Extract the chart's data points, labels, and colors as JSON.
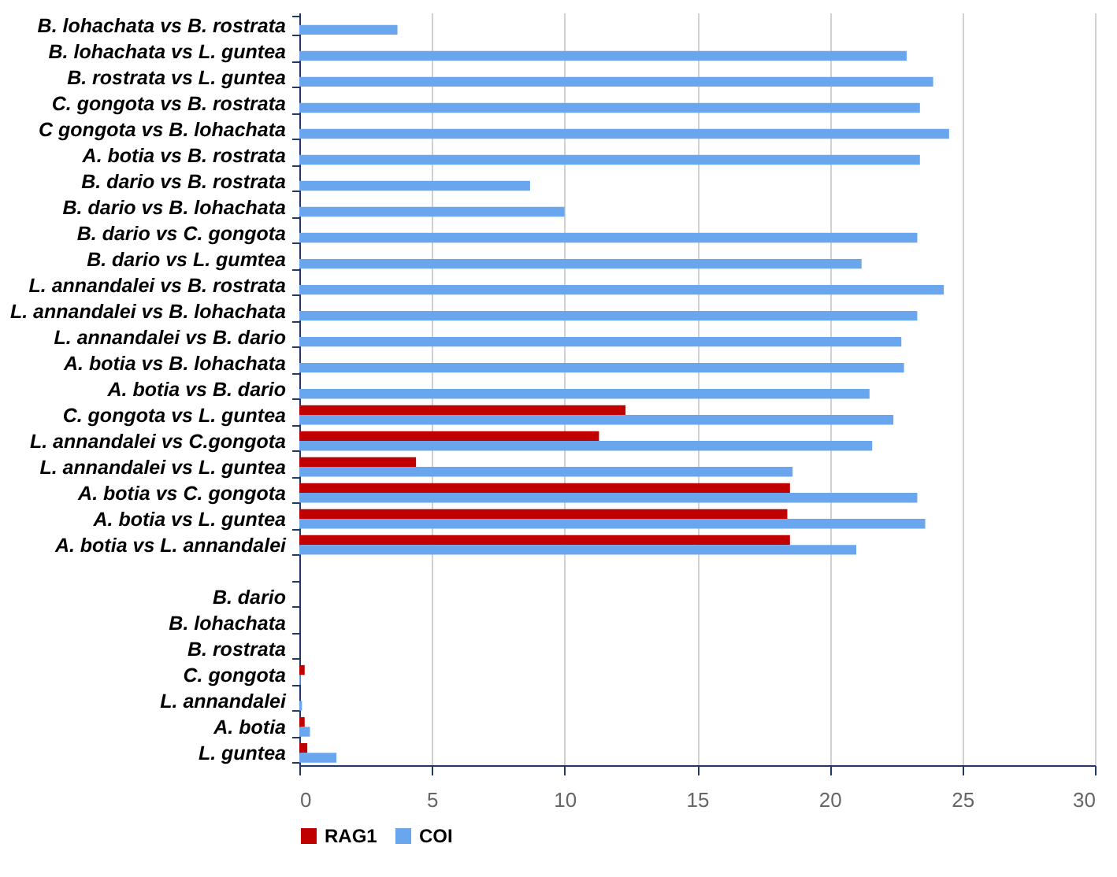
{
  "chart_data": {
    "type": "bar",
    "orientation": "horizontal",
    "categories": [
      "B. lohachata vs B. rostrata",
      "B. lohachata vs L. guntea",
      "B. rostrata vs L. guntea",
      "C. gongota vs B. rostrata",
      "C gongota vs B. lohachata",
      "A. botia vs B. rostrata",
      "B. dario vs B. rostrata",
      "B. dario vs B. lohachata",
      "B. dario vs C. gongota",
      "B. dario vs L. gumtea",
      "L. annandalei vs B. rostrata",
      "L. annandalei vs B. lohachata",
      "L. annandalei vs B. dario",
      "A. botia vs B. lohachata",
      "A. botia vs B. dario",
      "C. gongota vs L. guntea",
      "L. annandalei vs C.gongota",
      "L. annandalei vs L. guntea",
      "A. botia vs C. gongota",
      "A. botia vs L. guntea",
      "A. botia vs L. annandalei",
      null,
      "B. dario",
      "B. lohachata",
      "B. rostrata",
      "C. gongota",
      "L. annandalei",
      "A. botia",
      "L. guntea"
    ],
    "series": [
      {
        "name": "RAG1",
        "color": "#c00000",
        "values": [
          null,
          null,
          null,
          null,
          null,
          null,
          null,
          null,
          null,
          null,
          null,
          null,
          null,
          null,
          null,
          12.3,
          11.3,
          4.4,
          18.5,
          18.4,
          18.5,
          null,
          0,
          0,
          0,
          0.2,
          0,
          0.2,
          0.3
        ]
      },
      {
        "name": "COI",
        "color": "#6aa6ee",
        "values": [
          3.7,
          22.9,
          23.9,
          23.4,
          24.5,
          23.4,
          8.7,
          10.0,
          23.3,
          21.2,
          24.3,
          23.3,
          22.7,
          22.8,
          21.5,
          22.4,
          21.6,
          18.6,
          23.3,
          23.6,
          21.0,
          null,
          0,
          0,
          0,
          0.05,
          0.1,
          0.4,
          1.4
        ]
      }
    ],
    "xlim": [
      0,
      30
    ],
    "xticks": [
      0,
      5,
      10,
      15,
      20,
      25,
      30
    ],
    "grid": "x",
    "legend": "bottom"
  }
}
